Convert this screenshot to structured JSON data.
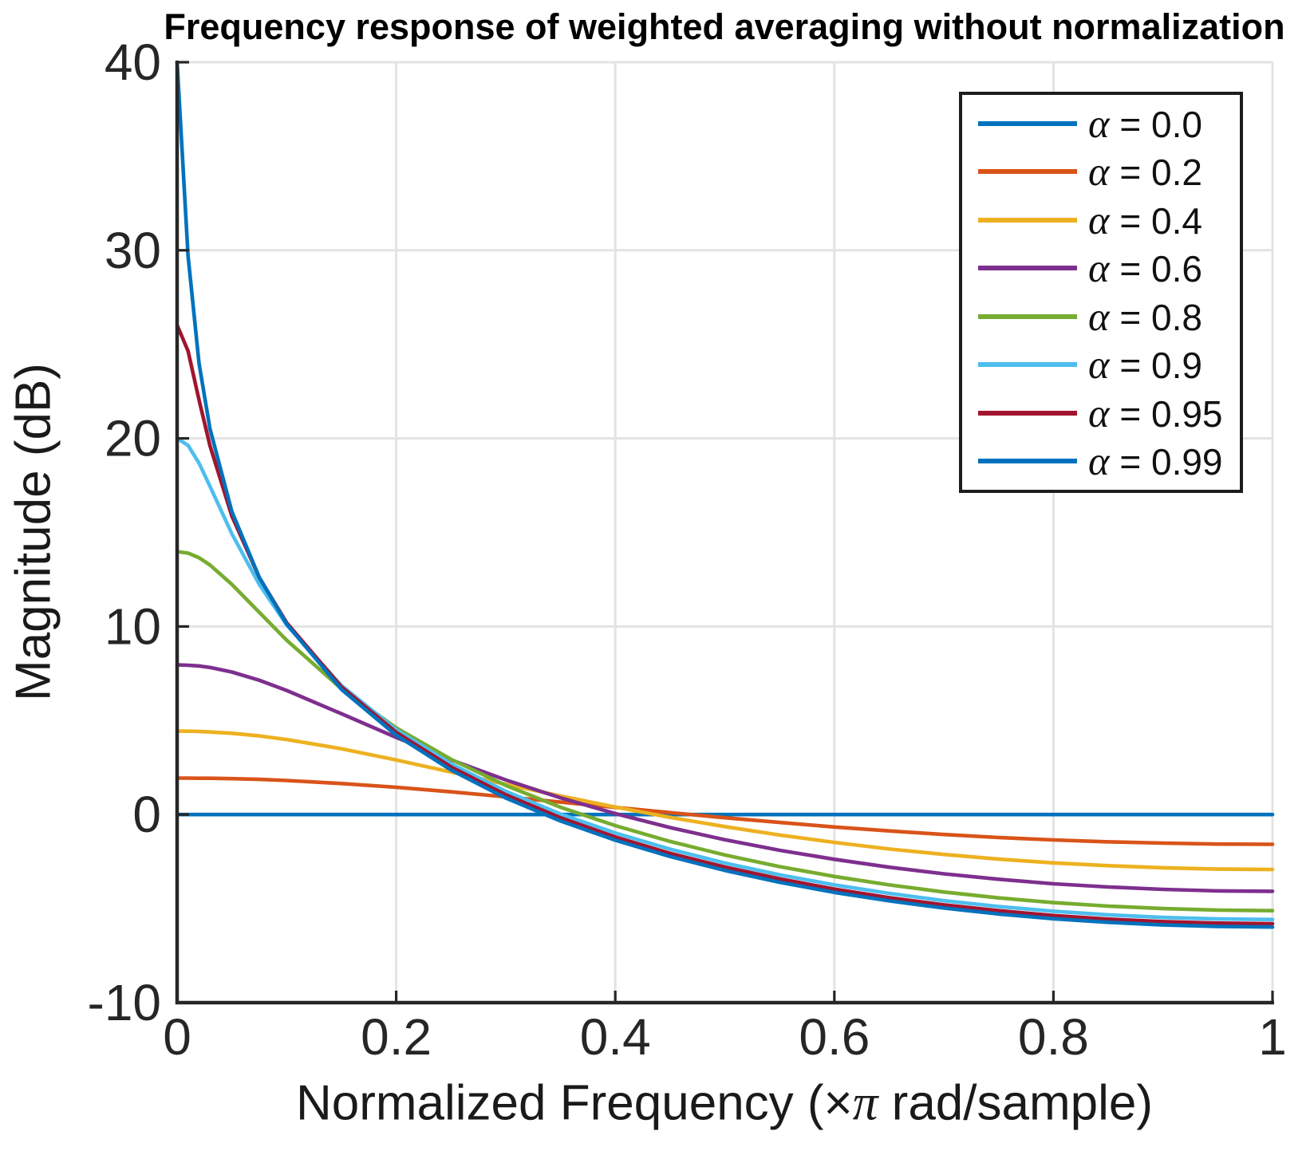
{
  "title": "Frequency response of weighted averaging without normalization",
  "colors": {
    "background": "#ffffff",
    "axis": "#262626",
    "grid": "#e3e3e3",
    "tick_text": "#262626",
    "title_text": "#000000",
    "legend_border": "#1d1d1d"
  },
  "chart_data": {
    "type": "line",
    "title": "Frequency response of weighted averaging without normalization",
    "xlabel": "Normalized Frequency (×π rad/sample)",
    "xlabel_prefix": "Normalized Frequency (×",
    "xlabel_pi": "π",
    "xlabel_suffix": " rad/sample)",
    "ylabel": "Magnitude (dB)",
    "xlim": [
      0,
      1
    ],
    "ylim": [
      -10,
      40
    ],
    "xticks": [
      0,
      0.2,
      0.4,
      0.6,
      0.8,
      1
    ],
    "yticks": [
      40,
      30,
      20,
      10,
      0,
      -10
    ],
    "grid": true,
    "legend_position": "top-right",
    "x": [
      0,
      0.01,
      0.02,
      0.03,
      0.05,
      0.075,
      0.1,
      0.15,
      0.2,
      0.25,
      0.3,
      0.35,
      0.4,
      0.45,
      0.5,
      0.55,
      0.6,
      0.65,
      0.7,
      0.75,
      0.8,
      0.85,
      0.9,
      0.95,
      1
    ],
    "series": [
      {
        "name": "α = 0.0",
        "alpha": 0.0,
        "color": "#0072BD",
        "values": [
          0,
          0,
          0,
          0,
          0,
          0,
          0,
          0,
          0,
          0,
          0,
          0,
          0,
          0,
          0,
          0,
          0,
          0,
          0,
          0,
          0,
          0,
          0,
          0,
          0
        ]
      },
      {
        "name": "α = 0.2",
        "alpha": 0.2,
        "color": "#D95319",
        "values": [
          1.94,
          1.94,
          1.93,
          1.93,
          1.91,
          1.87,
          1.81,
          1.65,
          1.45,
          1.21,
          0.94,
          0.66,
          0.38,
          0.1,
          -0.17,
          -0.42,
          -0.66,
          -0.87,
          -1.06,
          -1.22,
          -1.35,
          -1.45,
          -1.52,
          -1.57,
          -1.58
        ]
      },
      {
        "name": "α = 0.4",
        "alpha": 0.4,
        "color": "#EDB120",
        "values": [
          4.44,
          4.43,
          4.42,
          4.39,
          4.32,
          4.18,
          3.99,
          3.5,
          2.9,
          2.26,
          1.61,
          0.99,
          0.4,
          -0.15,
          -0.64,
          -1.09,
          -1.48,
          -1.83,
          -2.12,
          -2.37,
          -2.57,
          -2.72,
          -2.83,
          -2.9,
          -2.92
        ]
      },
      {
        "name": "α = 0.6",
        "alpha": 0.6,
        "color": "#7E2F8E",
        "values": [
          7.96,
          7.94,
          7.9,
          7.82,
          7.58,
          7.14,
          6.6,
          5.36,
          4.1,
          2.91,
          1.84,
          0.89,
          0.05,
          -0.69,
          -1.34,
          -1.9,
          -2.38,
          -2.8,
          -3.15,
          -3.44,
          -3.68,
          -3.85,
          -3.98,
          -4.06,
          -4.08
        ]
      },
      {
        "name": "α = 0.8",
        "alpha": 0.8,
        "color": "#77AC30",
        "values": [
          13.98,
          13.9,
          13.65,
          13.27,
          12.24,
          10.75,
          9.27,
          6.69,
          4.61,
          2.94,
          1.55,
          0.39,
          -0.59,
          -1.43,
          -2.15,
          -2.77,
          -3.29,
          -3.74,
          -4.12,
          -4.43,
          -4.68,
          -4.87,
          -5.0,
          -5.08,
          -5.11
        ]
      },
      {
        "name": "α = 0.9",
        "alpha": 0.9,
        "color": "#4DBEEE",
        "values": [
          20.0,
          19.63,
          18.68,
          17.45,
          14.93,
          12.24,
          10.08,
          6.86,
          4.51,
          2.7,
          1.24,
          0.03,
          -0.98,
          -1.84,
          -2.58,
          -3.2,
          -3.74,
          -4.19,
          -4.58,
          -4.89,
          -5.14,
          -5.33,
          -5.47,
          -5.55,
          -5.58
        ]
      },
      {
        "name": "α = 0.95",
        "alpha": 0.95,
        "color": "#A2142F",
        "values": [
          26.02,
          24.65,
          22.04,
          19.61,
          15.87,
          12.6,
          10.2,
          6.79,
          4.37,
          2.53,
          1.05,
          -0.17,
          -1.19,
          -2.06,
          -2.79,
          -3.42,
          -3.96,
          -4.42,
          -4.8,
          -5.11,
          -5.37,
          -5.56,
          -5.69,
          -5.77,
          -5.8
        ]
      },
      {
        "name": "α = 0.99",
        "alpha": 0.99,
        "color": "#0072BD",
        "values": [
          40.0,
          29.71,
          23.98,
          20.51,
          16.11,
          12.61,
          10.13,
          6.66,
          4.22,
          2.37,
          0.88,
          -0.34,
          -1.36,
          -2.23,
          -2.97,
          -3.6,
          -4.14,
          -4.59,
          -4.97,
          -5.29,
          -5.54,
          -5.73,
          -5.87,
          -5.95,
          -5.98
        ]
      }
    ]
  }
}
